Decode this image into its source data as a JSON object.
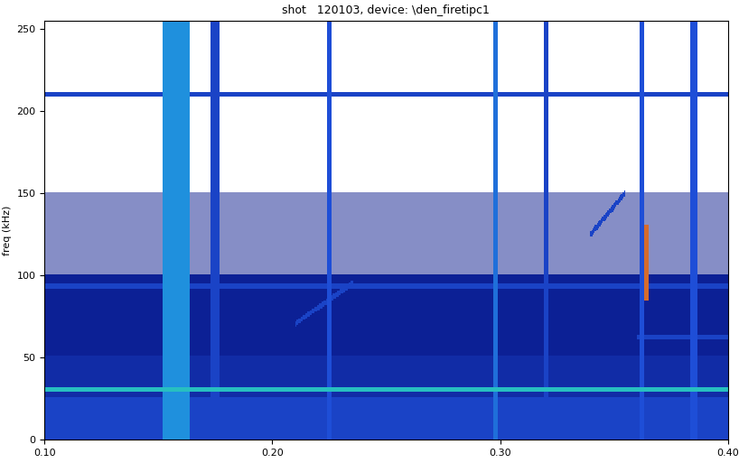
{
  "chart_data": {
    "type": "spectrogram",
    "title": "shot   120103, device: \\den_firetipc1",
    "y_label": "freq (kHz)",
    "xlim": [
      0.1,
      0.4
    ],
    "xticks": [
      {
        "value": 0.1,
        "label": "0.10"
      },
      {
        "value": 0.2,
        "label": "0.20"
      },
      {
        "value": 0.3,
        "label": "0.30"
      },
      {
        "value": 0.4,
        "label": "0.40"
      }
    ],
    "ylim": [
      0,
      255
    ],
    "yticks": [
      0,
      50,
      100,
      150,
      200,
      250
    ],
    "level_range": [
      0,
      1
    ],
    "background": {
      "freq_edges": [
        0,
        25,
        50,
        100,
        150,
        255
      ],
      "levels": [
        0.3,
        0.2,
        0.15,
        0.11,
        0.05
      ]
    },
    "bands": [
      {
        "freq": 30,
        "t_start": 0.1,
        "t_end": 0.4,
        "level": 0.55
      },
      {
        "freq": 93,
        "t_start": 0.1,
        "t_end": 0.4,
        "level": 0.3
      },
      {
        "freq": 210,
        "t_start": 0.1,
        "t_end": 0.4,
        "level": 0.3
      },
      {
        "freq": 62,
        "t_start": 0.36,
        "t_end": 0.4,
        "level": 0.3
      }
    ],
    "bursts": [
      {
        "t": 0.158,
        "width": 0.012,
        "fmin": 0,
        "fmax": 255,
        "level": 0.45
      },
      {
        "t": 0.175,
        "width": 0.004,
        "fmin": 0,
        "fmax": 255,
        "level": 0.3
      },
      {
        "t": 0.225,
        "width": 0.002,
        "fmin": 0,
        "fmax": 255,
        "level": 0.35
      },
      {
        "t": 0.298,
        "width": 0.002,
        "fmin": 0,
        "fmax": 255,
        "level": 0.4
      },
      {
        "t": 0.32,
        "width": 0.002,
        "fmin": 0,
        "fmax": 255,
        "level": 0.3
      },
      {
        "t": 0.362,
        "width": 0.002,
        "fmin": 0,
        "fmax": 255,
        "level": 0.35
      },
      {
        "t": 0.385,
        "width": 0.003,
        "fmin": 0,
        "fmax": 255,
        "level": 0.35
      },
      {
        "t": 0.364,
        "width": 0.002,
        "fmin": 85,
        "fmax": 130,
        "level": 0.9
      }
    ],
    "sweeps": [
      {
        "t0": 0.21,
        "f0": 70,
        "t1": 0.235,
        "f1": 95,
        "level": 0.3
      },
      {
        "t0": 0.34,
        "f0": 125,
        "t1": 0.355,
        "f1": 150,
        "level": 0.3
      }
    ],
    "tick_labels": true
  }
}
